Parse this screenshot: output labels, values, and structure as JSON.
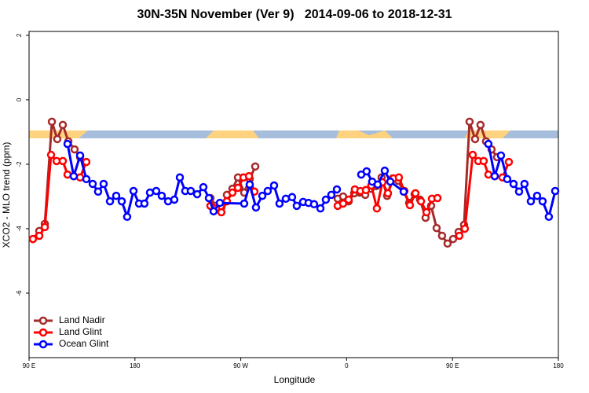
{
  "chart_data": {
    "type": "line",
    "title": "30N-35N November (Ver 9)   2014-09-06 to 2018-12-31",
    "x_label": "Longitude",
    "y_label": "XCO2 - MLO trend (ppm)",
    "xlim": [
      90,
      540
    ],
    "ylim": [
      -8,
      2.12
    ],
    "xticks": [
      {
        "value": 90,
        "label": "90 E"
      },
      180,
      {
        "value": 270,
        "label": "90 W"
      },
      {
        "value": 360,
        "label": "0"
      },
      {
        "value": 450,
        "label": "90 E"
      },
      {
        "value": 540,
        "label": "180"
      }
    ],
    "yticks": [
      -6,
      -4,
      -2,
      0,
      2
    ],
    "legend": "bottom-left",
    "series": [
      {
        "name": "Land Nadir",
        "color": "#a52a2a",
        "x": [
          93.3,
          98.7,
          103.4,
          109.4,
          114,
          118.7,
          123.4,
          128.7,
          133.4,
          null,
          244.2,
          248.9,
          253.5,
          258.2,
          262.9,
          267.6,
          272.9,
          277.6,
          282.3,
          null,
          352.4,
          357,
          361.7,
          366.4,
          371.1,
          375.8,
          380.4,
          385.1,
          389.7,
          394.4,
          399.1,
          403.8,
          408.5,
          413.1,
          417.8,
          422.4,
          427.1,
          431.8,
          436.5,
          441.1,
          445.8,
          450.5,
          455.2,
          459.8,
          464.5,
          469.2,
          473.8,
          478.5,
          483.2,
          487.9
        ],
        "values": [
          -4.32,
          -4.07,
          -3.85,
          -0.68,
          -1.22,
          -0.78,
          -1.29,
          -1.54,
          -1.78,
          null,
          -3.05,
          -3.29,
          -3.34,
          -2.95,
          -2.76,
          -2.41,
          -2.88,
          -2.46,
          -2.07,
          null,
          -3.07,
          -3.0,
          -3.15,
          -2.9,
          -2.88,
          -2.95,
          -2.76,
          -2.68,
          -2.41,
          -2.98,
          -2.44,
          -2.51,
          -2.85,
          -3.2,
          -2.93,
          -3.1,
          -3.66,
          -3.29,
          -3.98,
          -4.22,
          -4.46,
          -4.32,
          -4.1,
          -3.88,
          -0.68,
          -1.22,
          -0.78,
          -1.29,
          -1.54,
          -1.78
        ]
      },
      {
        "name": "Land Glint",
        "color": "#ff0000",
        "x": [
          93.3,
          98.7,
          103.4,
          108.7,
          113.4,
          118.7,
          122.7,
          128,
          133.4,
          138.7,
          null,
          244.2,
          248.9,
          253.5,
          258.2,
          262.9,
          267.6,
          272.3,
          277,
          281.6,
          null,
          352.4,
          357,
          361.7,
          367,
          371.7,
          376.4,
          381,
          385.7,
          390.4,
          395.1,
          399.8,
          404.4,
          409.1,
          413.8,
          418.5,
          423.2,
          427.9,
          432.5,
          437.2,
          null,
          455.8,
          460.5,
          467.2,
          471.9,
          476.5,
          480.5,
          485.9,
          492.5,
          497.9
        ],
        "values": [
          -4.32,
          -4.22,
          -3.95,
          -1.71,
          -1.9,
          -1.9,
          -2.32,
          -2.37,
          -2.41,
          -1.93,
          null,
          -3.29,
          -3.37,
          -3.49,
          -3.15,
          -2.88,
          -2.73,
          -2.41,
          -2.37,
          -2.85,
          null,
          -3.29,
          -3.22,
          -3.1,
          -2.78,
          -2.83,
          -2.8,
          -2.66,
          -3.37,
          -2.56,
          -2.9,
          -2.44,
          -2.41,
          -2.83,
          -3.27,
          -2.9,
          -3.15,
          -3.49,
          -3.07,
          -3.05,
          null,
          -4.22,
          -4.0,
          -1.71,
          -1.9,
          -1.9,
          -2.32,
          -2.37,
          -2.41,
          -1.93
        ]
      },
      {
        "name": "Ocean Glint",
        "color": "#0000ff",
        "x": [
          122.7,
          128,
          133.4,
          138.7,
          144.1,
          148.7,
          153.4,
          158.8,
          164.1,
          168.8,
          173.4,
          178.8,
          183.5,
          188.1,
          192.8,
          198.1,
          202.8,
          208.2,
          213.5,
          218.2,
          222.8,
          227.5,
          232.9,
          238.2,
          242.9,
          246.9,
          252.2,
          272.9,
          277.6,
          282.9,
          288.3,
          292.9,
          298.3,
          302.9,
          308.3,
          313.6,
          317.6,
          323,
          327.6,
          332.3,
          337.7,
          342.3,
          347,
          351.7,
          null,
          372.4,
          377,
          381.7,
          386.4,
          392.4,
          397.1,
          408.5,
          null,
          480.5,
          485.9,
          491.2,
          496.5,
          501.9,
          506.6,
          511.2,
          516.6,
          521.9,
          526.6,
          531.9,
          537.3
        ],
        "values": [
          -1.37,
          -2.37,
          -1.73,
          -2.46,
          -2.61,
          -2.85,
          -2.61,
          -3.15,
          -2.98,
          -3.15,
          -3.63,
          -2.83,
          -3.22,
          -3.22,
          -2.88,
          -2.83,
          -2.98,
          -3.15,
          -3.1,
          -2.41,
          -2.83,
          -2.83,
          -2.93,
          -2.71,
          -3.05,
          -3.46,
          -3.2,
          -3.22,
          -2.63,
          -3.34,
          -2.98,
          -2.83,
          -2.66,
          -3.22,
          -3.07,
          -3.02,
          -3.29,
          -3.17,
          -3.2,
          -3.24,
          -3.37,
          -3.1,
          -2.95,
          -2.78,
          null,
          -2.32,
          -2.22,
          -2.54,
          -2.63,
          -2.2,
          -2.54,
          -2.85,
          null,
          -1.37,
          -2.37,
          -1.73,
          -2.46,
          -2.61,
          -2.85,
          -2.61,
          -3.15,
          -2.98,
          -3.15,
          -3.63,
          -2.83
        ]
      }
    ]
  }
}
